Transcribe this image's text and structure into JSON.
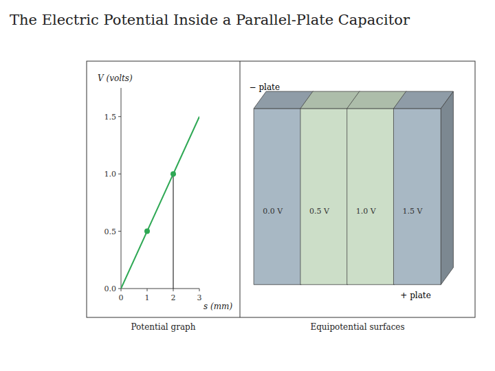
{
  "chart_data": {
    "type": "line",
    "title": "The Electric Potential Inside a Parallel-Plate Capacitor",
    "x_label": "s (mm)",
    "y_label": "V (volts)",
    "xlim": [
      0,
      3
    ],
    "ylim": [
      0,
      1.75
    ],
    "xticks": [
      0,
      1,
      2,
      3
    ],
    "yticks": [
      {
        "value": 0.0,
        "label": "0.0"
      },
      0.5,
      {
        "value": 1.0,
        "label": "1.0"
      },
      1.5
    ],
    "grid": false,
    "series": [
      {
        "type": "line",
        "color": "#2ea854",
        "x": [
          0,
          3
        ],
        "values": [
          0.0,
          1.5
        ]
      },
      {
        "type": "scatter",
        "color": "#2ea854",
        "x": [
          1,
          2
        ],
        "values": [
          0.5,
          1.0
        ]
      }
    ],
    "marker_line": {
      "x": 2,
      "y": 1.0
    },
    "caption": "Potential graph",
    "plates": {
      "caption": "Equipotential surfaces",
      "label_minus": "−  plate",
      "label_plus": "+ plate",
      "voltages": [
        "0.0 V",
        "0.5 V",
        "1.0 V",
        "1.5 V"
      ],
      "colors": [
        "#a8b8c4",
        "#ccdec8",
        "#ccdec8",
        "#a8b8c4"
      ]
    }
  }
}
